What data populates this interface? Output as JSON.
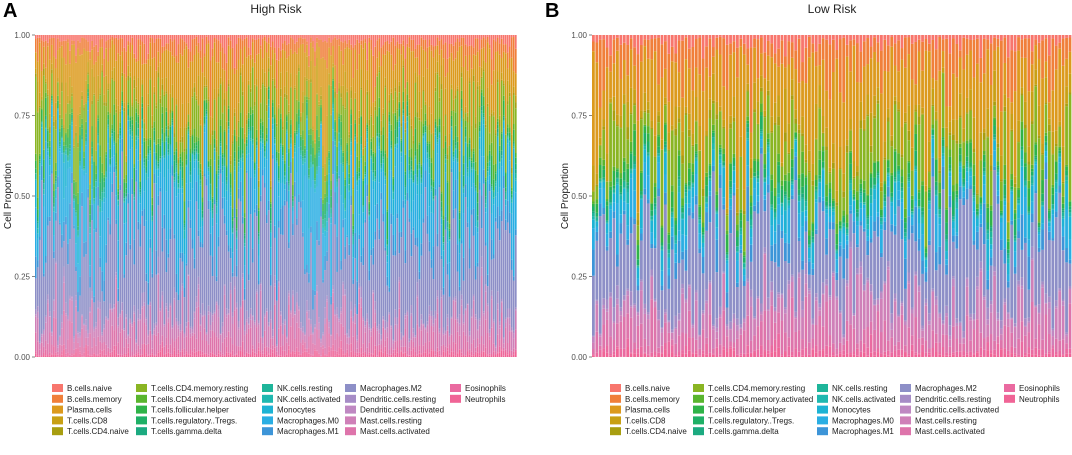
{
  "chart_data": [
    {
      "type": "stacked-bar",
      "panel_label": "A",
      "title": "High Risk",
      "xlabel": "",
      "ylabel": "Cell Proportion",
      "ylim": [
        0,
        1
      ],
      "yticks": [
        "0.00",
        "0.25",
        "0.50",
        "0.75",
        "1.00"
      ],
      "n_samples": 240,
      "approx_mean_composition": {
        "Macrophages.M2": 0.27,
        "Macrophages.M0": 0.16,
        "Monocytes": 0.06,
        "T.cells.CD4.memory.resting": 0.11,
        "Mast.cells.resting": 0.06,
        "Plasma.cells": 0.14,
        "B.cells.memory": 0.05,
        "other": 0.15
      }
    },
    {
      "type": "stacked-bar",
      "panel_label": "B",
      "title": "Low Risk",
      "xlabel": "",
      "ylabel": "Cell Proportion",
      "ylim": [
        0,
        1
      ],
      "yticks": [
        "0.00",
        "0.25",
        "0.50",
        "0.75",
        "1.00"
      ],
      "n_samples": 140,
      "approx_mean_composition": {
        "Macrophages.M2": 0.22,
        "Macrophages.M0": 0.05,
        "Monocytes": 0.04,
        "T.cells.CD4.memory.resting": 0.12,
        "Mast.cells.resting": 0.09,
        "Plasma.cells": 0.19,
        "B.cells.memory": 0.1,
        "other": 0.19
      }
    }
  ],
  "legend": [
    {
      "name": "B.cells.naive",
      "color": "#f8766d"
    },
    {
      "name": "B.cells.memory",
      "color": "#f07f3a"
    },
    {
      "name": "Plasma.cells",
      "color": "#dc9a1d"
    },
    {
      "name": "T.cells.CD8",
      "color": "#c8a014"
    },
    {
      "name": "T.cells.CD4.naive",
      "color": "#a89e10"
    },
    {
      "name": "T.cells.CD4.memory.resting",
      "color": "#8ab523"
    },
    {
      "name": "T.cells.CD4.memory.activated",
      "color": "#59b52e"
    },
    {
      "name": "T.cells.follicular.helper",
      "color": "#2fb348"
    },
    {
      "name": "T.cells.regulatory..Tregs.",
      "color": "#1fb066"
    },
    {
      "name": "T.cells.gamma.delta",
      "color": "#1caa80"
    },
    {
      "name": "NK.cells.resting",
      "color": "#1eb59a"
    },
    {
      "name": "NK.cells.activated",
      "color": "#1fb8b0"
    },
    {
      "name": "Monocytes",
      "color": "#1db3d4"
    },
    {
      "name": "Macrophages.M0",
      "color": "#2aaee3"
    },
    {
      "name": "Macrophages.M1",
      "color": "#3d95d8"
    },
    {
      "name": "Macrophages.M2",
      "color": "#8d8fc7"
    },
    {
      "name": "Dendritic.cells.resting",
      "color": "#a68cc6"
    },
    {
      "name": "Dendritic.cells.activated",
      "color": "#bf88c2"
    },
    {
      "name": "Mast.cells.resting",
      "color": "#cf80b8"
    },
    {
      "name": "Mast.cells.activated",
      "color": "#de74ab"
    },
    {
      "name": "Eosinophils",
      "color": "#ea6aa0"
    },
    {
      "name": "Neutrophils",
      "color": "#f06496"
    }
  ]
}
